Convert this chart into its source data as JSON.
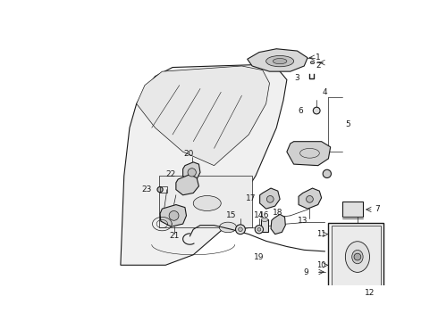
{
  "bg_color": "#ffffff",
  "lc": "#1a1a1a",
  "fig_w": 4.9,
  "fig_h": 3.6,
  "dpi": 100,
  "door_outline": [
    [
      0.155,
      0.155,
      0.17,
      0.195,
      0.2,
      0.395,
      0.43,
      0.455,
      0.5,
      0.51,
      0.505,
      0.49,
      0.46,
      0.42,
      0.155
    ],
    [
      0.085,
      0.74,
      0.79,
      0.84,
      0.86,
      0.87,
      0.87,
      0.855,
      0.82,
      0.76,
      0.7,
      0.6,
      0.43,
      0.095,
      0.085
    ]
  ],
  "win_outline": [
    [
      0.2,
      0.205,
      0.23,
      0.38,
      0.43,
      0.455,
      0.42,
      0.2
    ],
    [
      0.75,
      0.84,
      0.86,
      0.87,
      0.855,
      0.79,
      0.7,
      0.75
    ]
  ]
}
